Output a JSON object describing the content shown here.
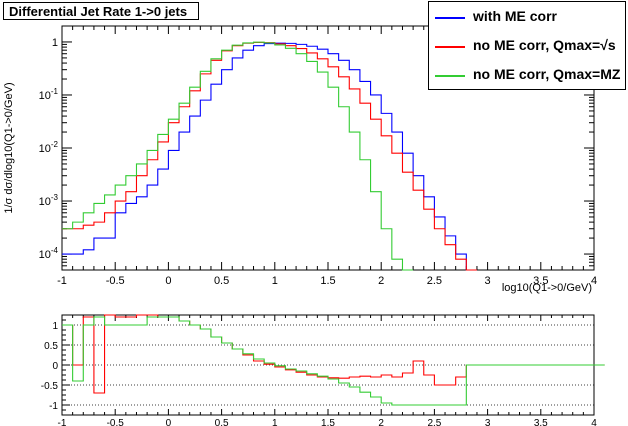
{
  "chart_data": [
    {
      "type": "line",
      "title": "Differential Jet Rate 1->0 jets",
      "xlabel": "log10(Q1->0/GeV)",
      "ylabel": "1/σ dσ/dlog10(Q1->0/GeV)",
      "xlim": [
        -1,
        4
      ],
      "ylim": [
        5e-05,
        2
      ],
      "yscale": "log",
      "x_ticks": [
        "-1",
        "-0.5",
        "0",
        "0.5",
        "1",
        "1.5",
        "2",
        "2.5",
        "3",
        "3.5",
        "4"
      ],
      "y_ticks": [
        "1",
        "10^-1",
        "10^-2",
        "10^-3",
        "10^-4"
      ],
      "grid": false,
      "legend_position": "top-right",
      "series": [
        {
          "name": "with ME corr",
          "color": "#0000ff",
          "x": [
            -1.0,
            -0.9,
            -0.8,
            -0.7,
            -0.6,
            -0.5,
            -0.4,
            -0.3,
            -0.2,
            -0.1,
            0.0,
            0.1,
            0.2,
            0.3,
            0.4,
            0.5,
            0.6,
            0.7,
            0.8,
            0.9,
            1.0,
            1.1,
            1.2,
            1.3,
            1.4,
            1.5,
            1.6,
            1.7,
            1.8,
            1.9,
            2.0,
            2.1,
            2.2,
            2.3,
            2.4,
            2.5,
            2.6,
            2.7,
            2.8
          ],
          "y": [
            0.0001,
            0.0001,
            0.00012,
            0.0002,
            0.0002,
            0.0006,
            0.0009,
            0.0012,
            0.002,
            0.004,
            0.009,
            0.02,
            0.04,
            0.08,
            0.16,
            0.3,
            0.5,
            0.7,
            0.85,
            0.93,
            0.95,
            0.94,
            0.9,
            0.83,
            0.73,
            0.6,
            0.45,
            0.3,
            0.18,
            0.1,
            0.045,
            0.02,
            0.008,
            0.003,
            0.0012,
            0.0005,
            0.00022,
            0.0001,
            5e-05
          ]
        },
        {
          "name": "no ME corr, Qmax=√s",
          "color": "#ff0000",
          "x": [
            -1.0,
            -0.9,
            -0.8,
            -0.7,
            -0.6,
            -0.5,
            -0.4,
            -0.3,
            -0.2,
            -0.1,
            0.0,
            0.1,
            0.2,
            0.3,
            0.4,
            0.5,
            0.6,
            0.7,
            0.8,
            0.9,
            1.0,
            1.1,
            1.2,
            1.3,
            1.4,
            1.5,
            1.6,
            1.7,
            1.8,
            1.9,
            2.0,
            2.1,
            2.2,
            2.3,
            2.4,
            2.5,
            2.6,
            2.7,
            2.8
          ],
          "y": [
            0.0003,
            0.0003,
            0.00035,
            0.0004,
            0.0006,
            0.001,
            0.0015,
            0.003,
            0.006,
            0.013,
            0.03,
            0.06,
            0.12,
            0.25,
            0.45,
            0.68,
            0.85,
            0.95,
            0.98,
            0.97,
            0.92,
            0.85,
            0.75,
            0.62,
            0.48,
            0.34,
            0.22,
            0.13,
            0.07,
            0.035,
            0.017,
            0.008,
            0.0035,
            0.0016,
            0.0007,
            0.0003,
            0.00015,
            8e-05,
            5e-05
          ]
        },
        {
          "name": "no ME corr, Qmax=MZ",
          "color": "#33cc33",
          "x": [
            -1.0,
            -0.9,
            -0.8,
            -0.7,
            -0.6,
            -0.5,
            -0.4,
            -0.3,
            -0.2,
            -0.1,
            0.0,
            0.1,
            0.2,
            0.3,
            0.4,
            0.5,
            0.6,
            0.7,
            0.8,
            0.9,
            1.0,
            1.1,
            1.2,
            1.3,
            1.4,
            1.5,
            1.6,
            1.7,
            1.8,
            1.9,
            2.0,
            2.1,
            2.2
          ],
          "y": [
            0.0003,
            0.0004,
            0.0006,
            0.0009,
            0.0013,
            0.002,
            0.003,
            0.005,
            0.009,
            0.018,
            0.035,
            0.07,
            0.14,
            0.28,
            0.48,
            0.7,
            0.87,
            0.96,
            0.99,
            0.96,
            0.88,
            0.76,
            0.6,
            0.43,
            0.27,
            0.14,
            0.06,
            0.02,
            0.006,
            0.0015,
            0.0003,
            8e-05,
            5e-05
          ]
        }
      ]
    },
    {
      "type": "line",
      "xlim": [
        -1,
        4
      ],
      "ylim": [
        -1.25,
        1.25
      ],
      "x_ticks": [
        "-1",
        "-0.5",
        "0",
        "0.5",
        "1",
        "1.5",
        "2",
        "2.5",
        "3",
        "3.5",
        "4"
      ],
      "y_ticks": [
        "1",
        "0.5",
        "0",
        "-0.5",
        "-1"
      ],
      "grid": true,
      "series": [
        {
          "color": "#ff0000",
          "x": [
            -1.0,
            -0.9,
            -0.8,
            -0.7,
            -0.6,
            -0.5,
            -0.4,
            -0.3,
            -0.2,
            -0.1,
            0.0,
            0.1,
            0.2,
            0.3,
            0.4,
            0.5,
            0.6,
            0.7,
            0.8,
            0.9,
            1.0,
            1.1,
            1.2,
            1.3,
            1.4,
            1.5,
            1.6,
            1.7,
            1.8,
            1.9,
            2.0,
            2.1,
            2.2,
            2.3,
            2.4,
            2.5,
            2.6,
            2.7,
            2.8,
            2.9,
            4.0
          ],
          "y": [
            1.0,
            0.0,
            1.2,
            -0.7,
            1.3,
            1.2,
            1.2,
            1.3,
            1.3,
            1.2,
            1.2,
            1.1,
            1.0,
            0.9,
            0.7,
            0.55,
            0.4,
            0.25,
            0.1,
            0.02,
            -0.05,
            -0.12,
            -0.18,
            -0.25,
            -0.3,
            -0.32,
            -0.33,
            -0.3,
            -0.28,
            -0.3,
            -0.25,
            -0.3,
            -0.2,
            0.1,
            -0.25,
            -0.5,
            -0.5,
            -0.3,
            0.0,
            0.0,
            0.0
          ]
        },
        {
          "color": "#33cc33",
          "x": [
            -1.0,
            -0.9,
            -0.8,
            -0.7,
            -0.6,
            -0.5,
            -0.4,
            -0.3,
            -0.2,
            -0.1,
            0.0,
            0.1,
            0.2,
            0.3,
            0.4,
            0.5,
            0.6,
            0.7,
            0.8,
            0.9,
            1.0,
            1.1,
            1.2,
            1.3,
            1.4,
            1.5,
            1.6,
            1.7,
            1.8,
            1.9,
            2.0,
            2.1,
            2.2,
            2.3,
            2.4,
            2.5,
            2.6,
            2.7,
            2.8,
            2.9,
            4.0
          ],
          "y": [
            1.0,
            -0.4,
            1.0,
            1.2,
            1.0,
            1.0,
            1.0,
            1.0,
            1.2,
            1.2,
            1.2,
            1.1,
            1.0,
            0.9,
            0.7,
            0.55,
            0.4,
            0.28,
            0.15,
            0.05,
            -0.02,
            -0.1,
            -0.15,
            -0.22,
            -0.28,
            -0.35,
            -0.45,
            -0.55,
            -0.68,
            -0.8,
            -0.95,
            -1.0,
            -1.0,
            -1.0,
            -1.0,
            -1.0,
            -1.0,
            -1.0,
            0.0,
            0.0,
            0.0
          ]
        }
      ]
    }
  ]
}
